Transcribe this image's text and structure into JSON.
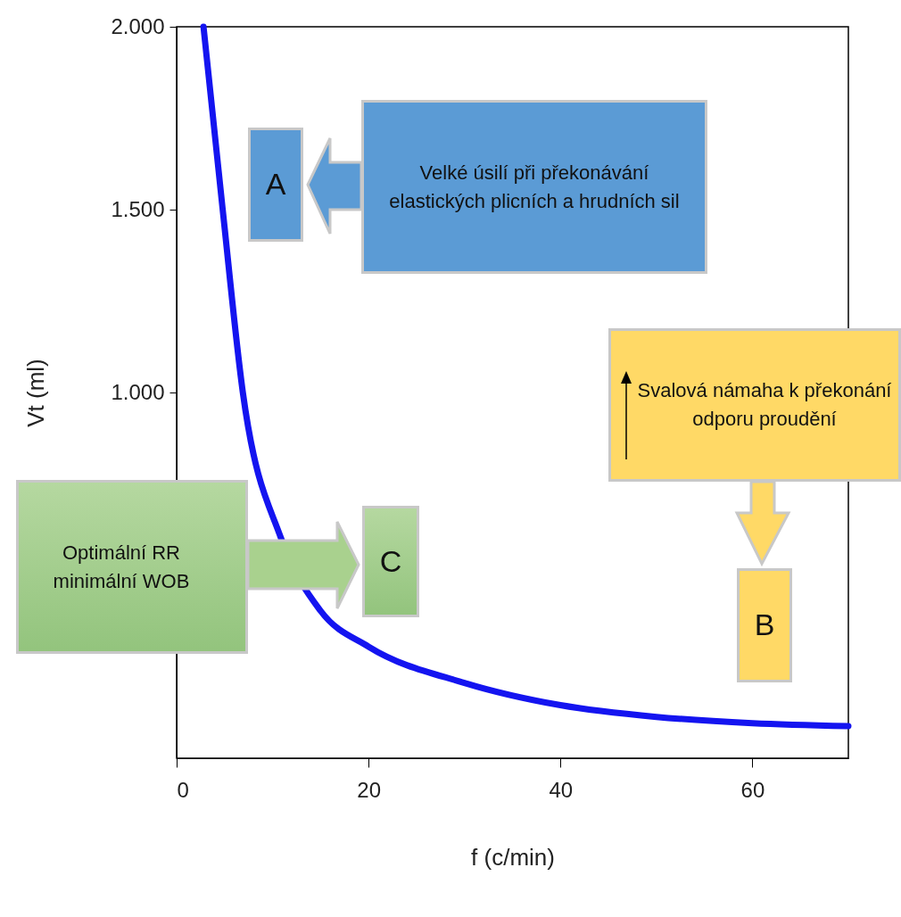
{
  "chart_data": {
    "type": "line",
    "xlabel": "f (c/min)",
    "ylabel": "Vt (ml)",
    "x": [
      2.8,
      4.8,
      6.9,
      10.9,
      15,
      20,
      30,
      40,
      50,
      60,
      70
    ],
    "series": [
      {
        "color": "#1414f0",
        "values": [
          2000,
          1500,
          1000,
          600,
          403,
          305,
          206,
          145,
          113,
          96,
          88
        ]
      }
    ],
    "xlim": [
      0,
      70
    ],
    "xticks": [
      0,
      20,
      40,
      60
    ],
    "ylim": [
      0,
      2000
    ],
    "yticks": [
      {
        "value": 1000,
        "label": "1.000"
      },
      {
        "value": 1500,
        "label": "1.500"
      },
      {
        "value": 2000,
        "label": "2.000"
      }
    ],
    "grid": false,
    "legend": false,
    "marker": "none",
    "line_style": "solid",
    "annotations": [
      "A",
      "Velké úsilí při překonávání elastických plicních a hrudních sil",
      "B",
      "Svalová námaha k překonání odporu proudění",
      "C",
      "Optimální RR minimální WOB"
    ]
  }
}
